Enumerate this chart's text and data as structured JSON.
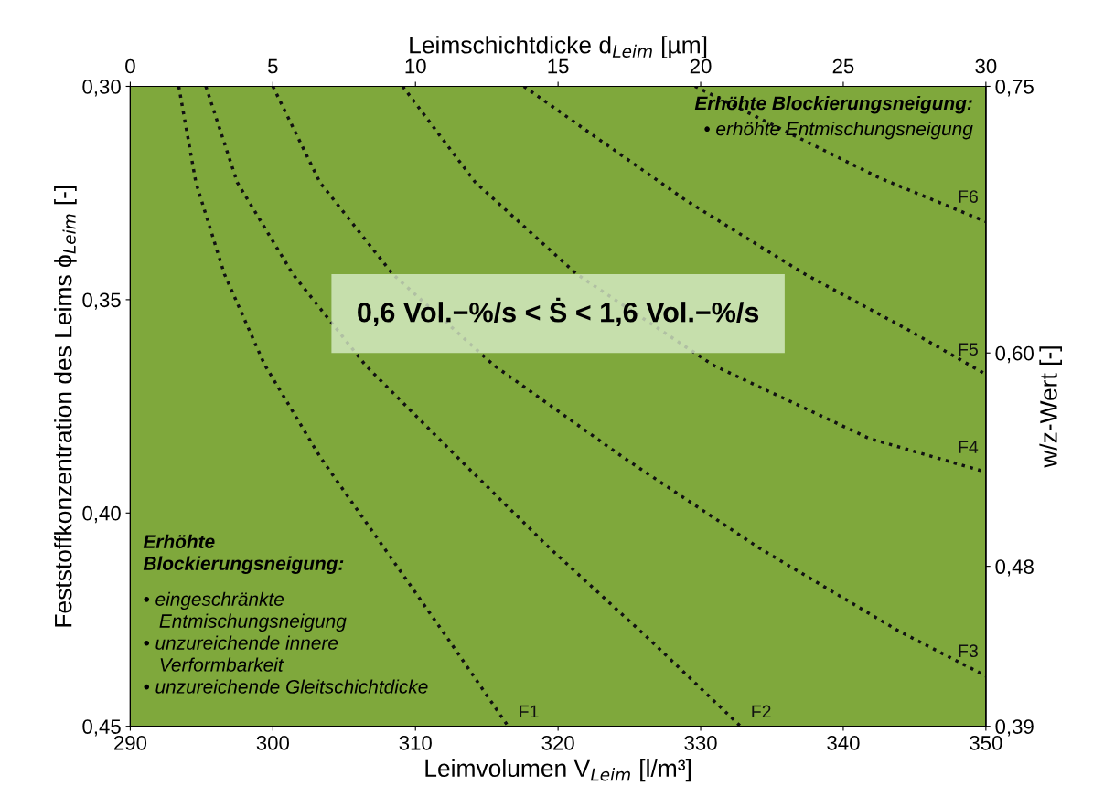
{
  "chart_data": {
    "type": "line",
    "xlabel": "Leimvolumen V$_{Leim}$ [l/m³]",
    "ylabel": "Feststoffkonzentration des Leims ϕ$_{Leim}$ [-]",
    "x2label": "Leimschichtdicke d$_{Leim}$ [µm]",
    "y2label": "w/z-Wert [-]",
    "xlim": [
      290,
      350
    ],
    "xticks": [
      290,
      300,
      310,
      320,
      330,
      340,
      350
    ],
    "ylim": [
      0.45,
      0.3
    ],
    "yticks": [
      {
        "value": 0.3,
        "label": "0,30"
      },
      {
        "value": 0.35,
        "label": "0,35"
      },
      {
        "value": 0.4,
        "label": "0,40"
      },
      {
        "value": 0.45,
        "label": "0,45"
      }
    ],
    "x2lim": [
      0,
      30
    ],
    "x2ticks": [
      0,
      5,
      10,
      15,
      20,
      25,
      30
    ],
    "y2lim": [
      0.39,
      0.75
    ],
    "y2ticks": [
      {
        "value": 0.75,
        "label": "0,75"
      },
      {
        "value": 0.6,
        "label": "0,60"
      },
      {
        "value": 0.48,
        "label": "0,48"
      },
      {
        "value": 0.39,
        "label": "0,39"
      }
    ],
    "line_style": "dotted",
    "marker": "none",
    "grid": false,
    "series": [
      {
        "name": "F1",
        "color": "#111111",
        "x": [
          293.4,
          294.6,
          296.6,
          299.4,
          303.3,
          307.8,
          312.3,
          316.5
        ],
        "values": [
          0.3,
          0.3225,
          0.344,
          0.3651,
          0.3868,
          0.4082,
          0.4296,
          0.45
        ]
      },
      {
        "name": "F2",
        "color": "#111111",
        "x": [
          295.3,
          297.5,
          301.4,
          306.5,
          312.9,
          319.4,
          326.4,
          332.8
        ],
        "values": [
          0.3,
          0.3225,
          0.344,
          0.3654,
          0.3868,
          0.4082,
          0.4296,
          0.45
        ]
      },
      {
        "name": "F3",
        "color": "#111111",
        "x": [
          300.0,
          303.3,
          308.4,
          315.5,
          324.5,
          334.1,
          343.8,
          350.0
        ],
        "values": [
          0.3,
          0.3225,
          0.344,
          0.3654,
          0.3868,
          0.4082,
          0.4275,
          0.4382
        ]
      },
      {
        "name": "F4",
        "color": "#111111",
        "x": [
          309.1,
          314.2,
          321.3,
          330.9,
          341.8,
          350.0
        ],
        "values": [
          0.3,
          0.3225,
          0.344,
          0.3654,
          0.3825,
          0.3904
        ]
      },
      {
        "name": "F5",
        "color": "#111111",
        "x": [
          317.6,
          322.6,
          329.0,
          337.3,
          344.4,
          350.0
        ],
        "values": [
          0.3,
          0.3118,
          0.3268,
          0.344,
          0.3568,
          0.3675
        ]
      },
      {
        "name": "F6",
        "color": "#111111",
        "x": [
          329.6,
          335.4,
          342.5,
          350.0
        ],
        "values": [
          0.3,
          0.3096,
          0.3214,
          0.3317
        ]
      }
    ],
    "annotations": [
      "Erhöhte Blockierungsneigung:",
      "• erhöhte Entmischungsneigung",
      "Erhöhte\nBlockierungsneigung:",
      "• eingeschränkte\n   Entmischungsneigung\n• unzureichende innere\n   Verformbarkeit\n• unzureichende Gleitschichtdicke",
      "0,6 Vol.−%/s < Ṡ < 1,6 Vol.−%/s"
    ]
  }
}
